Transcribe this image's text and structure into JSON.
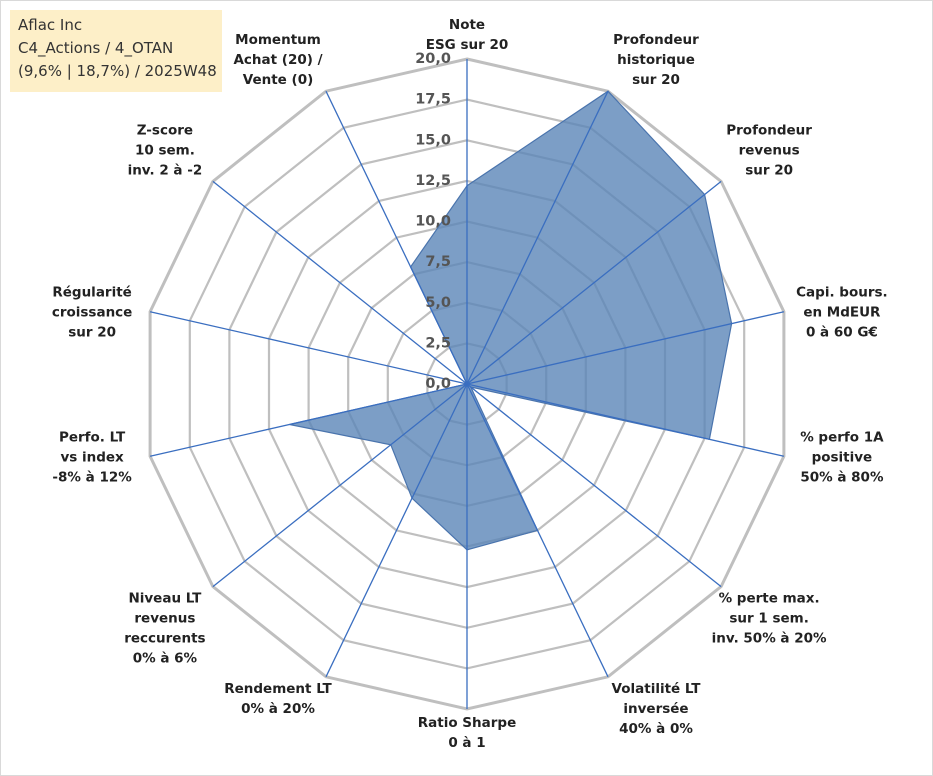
{
  "info": {
    "line1": "Aflac Inc",
    "line2": "C4_Actions / 4_OTAN",
    "line3": "(9,6% | 18,7%) / 2025W48"
  },
  "colors": {
    "fill": "#5b86b8",
    "fill_opacity": 0.8,
    "series_line": "#4a74ad",
    "grid": "#bfbfbf",
    "spokes": "#3a6ec0"
  },
  "chart_data": {
    "type": "radar",
    "rmin": 0,
    "rmax": 20,
    "ticks": [
      "0,0",
      "2,5",
      "5,0",
      "7,5",
      "10,0",
      "12,5",
      "15,0",
      "17,5",
      "20,0"
    ],
    "axes": [
      [
        "Note",
        "ESG sur 20"
      ],
      [
        "Profondeur",
        "historique",
        "sur 20"
      ],
      [
        "Profondeur",
        "revenus",
        "sur 20"
      ],
      [
        "Capi. bours.",
        "en MdEUR",
        "0 à 60 G€"
      ],
      [
        "% perfo 1A",
        "positive",
        "50% à 80%"
      ],
      [
        "% perte max.",
        "sur 1 sem.",
        "inv. 50% à 20%"
      ],
      [
        "Volatilité LT",
        "inversée",
        "40% à 0%"
      ],
      [
        "Ratio Sharpe",
        "0 à 1"
      ],
      [
        "Rendement LT",
        "0% à 20%"
      ],
      [
        "Niveau LT",
        "revenus",
        "reccurents",
        "0% à 6%"
      ],
      [
        "Perfo. LT",
        "vs index",
        "-8% à 12%"
      ],
      [
        "Régularité",
        "croissance",
        "sur 20"
      ],
      [
        "Z-score",
        "10 sem.",
        "inv. 2 à -2"
      ],
      [
        "Momentum",
        "Achat (20) /",
        "Vente (0)"
      ]
    ],
    "series": [
      {
        "values": [
          12.2,
          20.0,
          18.7,
          16.7,
          15.3,
          0.3,
          10.0,
          10.2,
          7.8,
          6.0,
          11.2,
          0.0,
          0.0,
          8.0
        ]
      }
    ]
  }
}
